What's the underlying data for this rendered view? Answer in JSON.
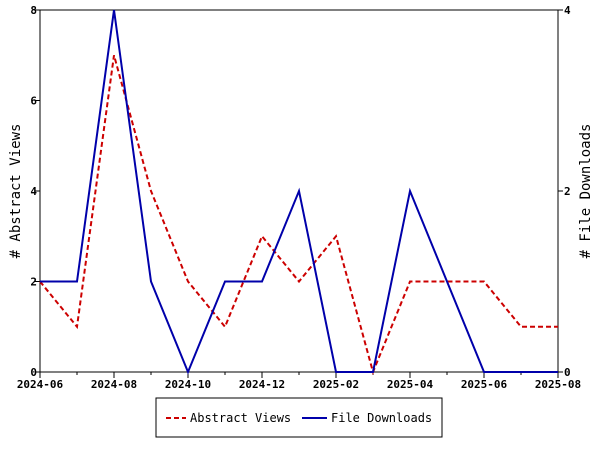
{
  "chart_data": {
    "type": "line",
    "x": [
      "2024-06",
      "2024-07",
      "2024-08",
      "2024-09",
      "2024-10",
      "2024-11",
      "2024-12",
      "2025-01",
      "2025-02",
      "2025-03",
      "2025-04",
      "2025-05",
      "2025-06",
      "2025-07",
      "2025-08"
    ],
    "x_ticks": [
      "2024-06",
      "2024-08",
      "2024-10",
      "2024-12",
      "2025-02",
      "2025-04",
      "2025-06",
      "2025-08"
    ],
    "ylabel_left": "# Abstract Views",
    "ylabel_right": "# File Downloads",
    "ylim_left": [
      0,
      8
    ],
    "ylim_right": [
      0,
      4
    ],
    "yticks_left": [
      0,
      2,
      4,
      6,
      8
    ],
    "yticks_right": [
      0,
      2,
      4
    ],
    "grid": false,
    "legend_position": "bottom-center",
    "series": [
      {
        "name": "Abstract Views",
        "axis": "left",
        "color": "#cc0000",
        "style": "dashed",
        "values": [
          2,
          1,
          7,
          4,
          2,
          1,
          3,
          2,
          3,
          0,
          2,
          2,
          2,
          1,
          1
        ]
      },
      {
        "name": "File Downloads",
        "axis": "right",
        "color": "#0000aa",
        "style": "solid",
        "values": [
          1,
          1,
          4,
          1,
          0,
          1,
          1,
          2,
          0,
          0,
          2,
          1,
          0,
          0,
          0
        ]
      }
    ]
  }
}
